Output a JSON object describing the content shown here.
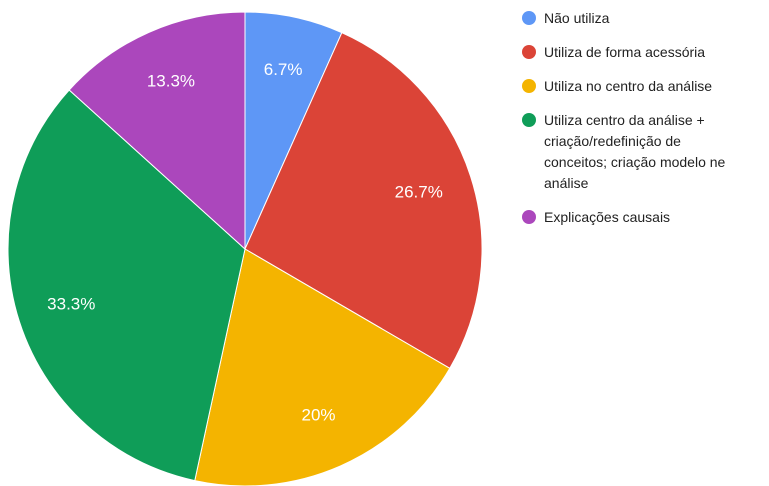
{
  "chart_data": {
    "type": "pie",
    "categories": [
      "Não utiliza",
      "Utiliza de forma acessória",
      "Utiliza no centro da análise",
      "Utiliza centro da análise + criação/redefinição de conceitos; criação modelo ne análise",
      "Explicações causais"
    ],
    "values": [
      6.7,
      26.7,
      20,
      33.3,
      13.3
    ],
    "value_labels": [
      "6.7%",
      "26.7%",
      "20%",
      "33.3%",
      "13.3%"
    ],
    "colors": [
      "#5e97f6",
      "#db4437",
      "#f4b400",
      "#0f9d58",
      "#ab47bc"
    ],
    "legend": "right"
  }
}
